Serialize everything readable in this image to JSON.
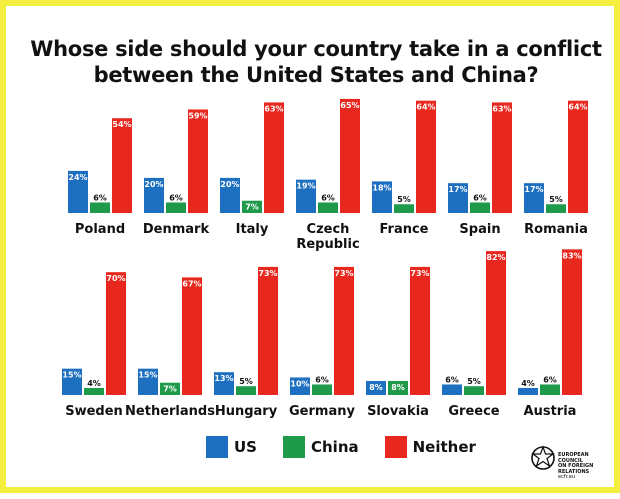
{
  "title_line1": "Whose side should your country take in a conflict",
  "title_line2": "between the United States and China?",
  "colors": {
    "us": "#1d6fc0",
    "china": "#1f9a4a",
    "neither": "#e8281f"
  },
  "chart_data": {
    "type": "bar",
    "title": "Whose side should your country take in a conflict between the United States and China?",
    "series_names": [
      "US",
      "China",
      "Neither"
    ],
    "ylim": [
      0,
      85
    ],
    "panels": [
      {
        "country": "Poland",
        "us": 24,
        "china": 6,
        "neither": 54
      },
      {
        "country": "Denmark",
        "us": 20,
        "china": 6,
        "neither": 59
      },
      {
        "country": "Italy",
        "us": 20,
        "china": 7,
        "neither": 63
      },
      {
        "country": "Czech Republic",
        "us": 19,
        "china": 6,
        "neither": 65
      },
      {
        "country": "France",
        "us": 18,
        "china": 5,
        "neither": 64
      },
      {
        "country": "Spain",
        "us": 17,
        "china": 6,
        "neither": 63
      },
      {
        "country": "Romania",
        "us": 17,
        "china": 5,
        "neither": 64
      },
      {
        "country": "Sweden",
        "us": 15,
        "china": 4,
        "neither": 70
      },
      {
        "country": "Netherlands",
        "us": 15,
        "china": 7,
        "neither": 67
      },
      {
        "country": "Hungary",
        "us": 13,
        "china": 5,
        "neither": 73
      },
      {
        "country": "Germany",
        "us": 10,
        "china": 6,
        "neither": 73
      },
      {
        "country": "Slovakia",
        "us": 8,
        "china": 8,
        "neither": 73
      },
      {
        "country": "Greece",
        "us": 6,
        "china": 5,
        "neither": 82
      },
      {
        "country": "Austria",
        "us": 4,
        "china": 6,
        "neither": 83
      }
    ]
  },
  "legend": [
    {
      "key": "us",
      "label": "US"
    },
    {
      "key": "china",
      "label": "China"
    },
    {
      "key": "neither",
      "label": "Neither"
    }
  ],
  "logo": {
    "line1": "EUROPEAN",
    "line2": "COUNCIL",
    "line3": "ON FOREIGN",
    "line4": "RELATIONS",
    "line5": "ecfr.eu"
  }
}
